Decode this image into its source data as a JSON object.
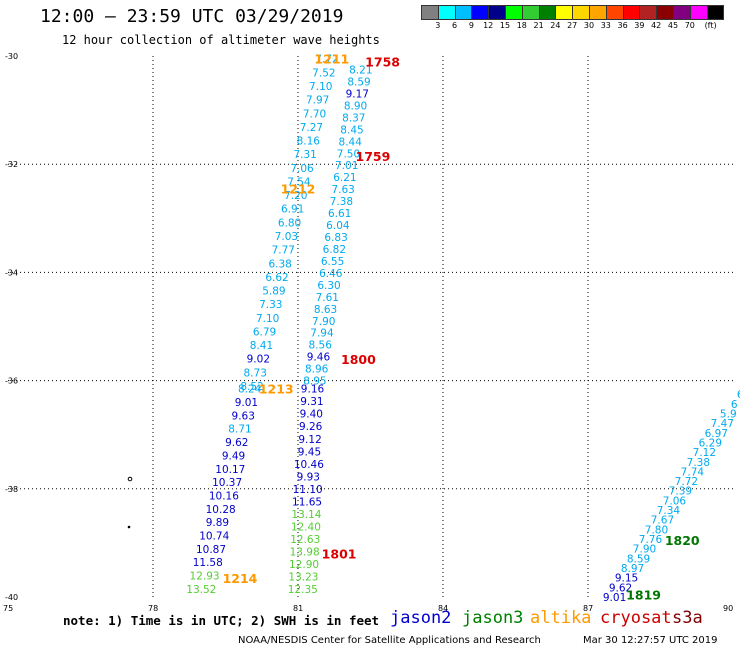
{
  "title": "12:00 — 23:59 UTC 03/29/2019",
  "subtitle": "12 hour collection of altimeter wave heights",
  "colorbar": {
    "colors": [
      "#808080",
      "#00ffff",
      "#00bfff",
      "#0000ff",
      "#00008b",
      "#00ff00",
      "#32cd32",
      "#008000",
      "#ffff00",
      "#ffd700",
      "#ffa500",
      "#ff4500",
      "#ff0000",
      "#b22222",
      "#8b0000",
      "#800080",
      "#ff00ff",
      "#000000"
    ],
    "labels": [
      "3",
      "6",
      "9",
      "12",
      "15",
      "18",
      "21",
      "24",
      "27",
      "30",
      "33",
      "36",
      "39",
      "42",
      "45",
      "70",
      "(ft)"
    ]
  },
  "y_axis_labels": [
    "-30",
    "-32",
    "-34",
    "-36",
    "-38",
    "-40"
  ],
  "x_axis_labels": [
    "75",
    "78",
    "81",
    "84",
    "87",
    "90"
  ],
  "note": "note: 1) Time is in UTC; 2) SWH is in feet",
  "legend": [
    {
      "name": "jason2",
      "color": "#0000cc"
    },
    {
      "name": "jason3",
      "color": "#008000"
    },
    {
      "name": "altika",
      "color": "#ff9900"
    },
    {
      "name": "cryosat",
      "color": "#cc0000"
    },
    {
      "name": "s3a",
      "color": "#800000"
    }
  ],
  "credit": "NOAA/NESDIS Center for Satellite Applications and Research",
  "timestamp": "Mar 30 12:27:57 UTC 2019",
  "time_labels": [
    {
      "text": "1211",
      "lon": 81.7,
      "lat": -30.05,
      "color": "#ff9900"
    },
    {
      "text": "1758",
      "lon": 82.75,
      "lat": -30.1,
      "color": "#dd0000"
    },
    {
      "text": "1759",
      "lon": 82.55,
      "lat": -31.85,
      "color": "#dd0000"
    },
    {
      "text": "1212",
      "lon": 81.0,
      "lat": -32.45,
      "color": "#ff9900"
    },
    {
      "text": "1800",
      "lon": 82.25,
      "lat": -35.6,
      "color": "#dd0000"
    },
    {
      "text": "1213",
      "lon": 80.55,
      "lat": -36.15,
      "color": "#ff9900"
    },
    {
      "text": "1801",
      "lon": 81.85,
      "lat": -39.2,
      "color": "#dd0000"
    },
    {
      "text": "1214",
      "lon": 79.8,
      "lat": -39.65,
      "color": "#ff9900"
    },
    {
      "text": "1820",
      "lon": 88.95,
      "lat": -38.95,
      "color": "#007700"
    },
    {
      "text": "1819",
      "lon": 88.15,
      "lat": -39.95,
      "color": "#007700"
    }
  ],
  "tracks": [
    {
      "name": "track-a",
      "start_lon": 81.6,
      "start_lat": -30.05,
      "end_lon": 80.05,
      "end_lat": -36.1,
      "values": [
        "7.72",
        "7.52",
        "7.10",
        "7.97",
        "7.70",
        "7.27",
        "8.16",
        "7.31",
        "7.06",
        "7.54",
        "7.20",
        "6.91",
        "6.80",
        "7.03",
        "7.77",
        "6.38",
        "6.62",
        "5.89",
        "7.33",
        "7.10",
        "6.79",
        "8.41",
        "9.02",
        "8.73",
        "8.52"
      ],
      "colors": [
        "#00aaee",
        "#00aaee",
        "#00aaee",
        "#00aaee",
        "#00aaee",
        "#00aaee",
        "#00aaee",
        "#00aaee",
        "#00aaee",
        "#00aaee",
        "#00aaee",
        "#00aaee",
        "#00aaee",
        "#00aaee",
        "#00aaee",
        "#00aaee",
        "#00aaee",
        "#00aaee",
        "#00aaee",
        "#00aaee",
        "#00aaee",
        "#00aaee",
        "#0000cc",
        "#00aaee",
        "#00aaee"
      ]
    },
    {
      "name": "track-b",
      "start_lon": 80.0,
      "start_lat": -36.15,
      "end_lon": 79.0,
      "end_lat": -39.85,
      "values": [
        "8.24",
        "9.01",
        "9.63",
        "8.71",
        "9.62",
        "9.49",
        "10.17",
        "10.37",
        "10.16",
        "10.28",
        "9.89",
        "10.74",
        "10.87",
        "11.58",
        "12.93",
        "13.52"
      ],
      "colors": [
        "#00aaee",
        "#0000cc",
        "#0000cc",
        "#00aaee",
        "#0000cc",
        "#0000cc",
        "#0000cc",
        "#0000cc",
        "#0000cc",
        "#0000cc",
        "#0000cc",
        "#0000cc",
        "#0000cc",
        "#0000cc",
        "#55cc33",
        "#55cc33"
      ]
    },
    {
      "name": "track-c",
      "start_lon": 82.3,
      "start_lat": -30.25,
      "end_lon": 81.35,
      "end_lat": -36.0,
      "values": [
        "8.21",
        "8.59",
        "9.17",
        "8.90",
        "8.37",
        "8.45",
        "8.44",
        "7.50",
        "7.01",
        "6.21",
        "7.63",
        "7.38",
        "6.61",
        "6.04",
        "6.83",
        "6.82",
        "6.55",
        "6.46",
        "6.30",
        "7.61",
        "8.63",
        "7.90",
        "7.94",
        "8.56",
        "9.46",
        "8.96",
        "8.95"
      ],
      "colors": [
        "#00aaee",
        "#00aaee",
        "#0000cc",
        "#00aaee",
        "#00aaee",
        "#00aaee",
        "#00aaee",
        "#00aaee",
        "#00aaee",
        "#00aaee",
        "#00aaee",
        "#00aaee",
        "#00aaee",
        "#00aaee",
        "#00aaee",
        "#00aaee",
        "#00aaee",
        "#00aaee",
        "#00aaee",
        "#00aaee",
        "#00aaee",
        "#00aaee",
        "#00aaee",
        "#00aaee",
        "#0000cc",
        "#00aaee",
        "#00aaee"
      ]
    },
    {
      "name": "track-d",
      "start_lon": 81.3,
      "start_lat": -36.15,
      "end_lon": 81.1,
      "end_lat": -39.85,
      "values": [
        "9.16",
        "9.31",
        "9.40",
        "9.26",
        "9.12",
        "9.45",
        "10.46",
        "9.93",
        "11.10",
        "11.65",
        "13.14",
        "12.40",
        "12.63",
        "13.98",
        "12.90",
        "13.23",
        "12.35"
      ],
      "colors": [
        "#0000cc",
        "#0000cc",
        "#0000cc",
        "#0000cc",
        "#0000cc",
        "#0000cc",
        "#0000cc",
        "#0000cc",
        "#0000cc",
        "#0000cc",
        "#55cc33",
        "#55cc33",
        "#55cc33",
        "#55cc33",
        "#55cc33",
        "#55cc33",
        "#55cc33"
      ]
    },
    {
      "name": "track-e",
      "start_lon": 90.15,
      "start_lat": -36.25,
      "end_lon": 87.55,
      "end_lat": -40.0,
      "values": [
        "6",
        "6",
        "5.9",
        "7.47",
        "6.97",
        "6.29",
        "7.12",
        "7.38",
        "7.74",
        "7.72",
        "7.39",
        "7.06",
        "7.34",
        "7.67",
        "7.80",
        "7.76",
        "7.90",
        "8.59",
        "8.97",
        "9.15",
        "9.62",
        "9.01"
      ],
      "colors": [
        "#00aaee",
        "#00aaee",
        "#00aaee",
        "#00aaee",
        "#00aaee",
        "#00aaee",
        "#00aaee",
        "#00aaee",
        "#00aaee",
        "#00aaee",
        "#00aaee",
        "#00aaee",
        "#00aaee",
        "#00aaee",
        "#00aaee",
        "#00aaee",
        "#00aaee",
        "#00aaee",
        "#00aaee",
        "#0000cc",
        "#0000cc",
        "#0000cc"
      ]
    }
  ]
}
